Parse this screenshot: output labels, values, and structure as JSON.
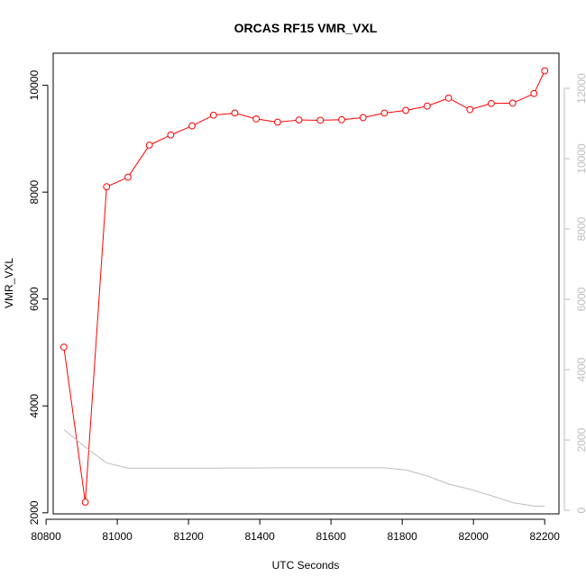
{
  "chart_data": {
    "type": "line",
    "title": "ORCAS RF15 VMR_VXL",
    "xlabel": "UTC Seconds",
    "ylabel": "VMR_VXL",
    "xlim": [
      80820,
      82240
    ],
    "ylim": [
      1980,
      10600
    ],
    "y2lim": [
      -100,
      13000
    ],
    "x_ticks": [
      80800,
      81000,
      81200,
      81400,
      81600,
      81800,
      82000,
      82200
    ],
    "y_ticks": [
      2000,
      4000,
      6000,
      8000,
      10000
    ],
    "y2_ticks": [
      0,
      2000,
      4000,
      6000,
      8000,
      10000,
      12000
    ],
    "grid": false,
    "series": [
      {
        "axis": "left",
        "color": "#ff0000",
        "markers": "open-circle",
        "x": [
          80850,
          80910,
          80970,
          81030,
          81090,
          81150,
          81210,
          81270,
          81330,
          81390,
          81450,
          81510,
          81570,
          81630,
          81690,
          81750,
          81810,
          81870,
          81930,
          81990,
          82050,
          82110,
          82170,
          82200
        ],
        "values": [
          5100,
          2200,
          8100,
          8280,
          8880,
          9070,
          9240,
          9440,
          9480,
          9370,
          9310,
          9350,
          9345,
          9355,
          9395,
          9480,
          9530,
          9610,
          9760,
          9545,
          9660,
          9665,
          9845,
          10270
        ]
      },
      {
        "axis": "right",
        "color": "#bdbdbd",
        "markers": "none",
        "x": [
          80850,
          80910,
          80970,
          81030,
          81090,
          81150,
          81210,
          81270,
          81330,
          81390,
          81450,
          81510,
          81570,
          81630,
          81690,
          81750,
          81810,
          81870,
          81930,
          81990,
          82050,
          82110,
          82170,
          82200
        ],
        "values": [
          2300,
          1800,
          1350,
          1200,
          1200,
          1200,
          1200,
          1200,
          1205,
          1205,
          1210,
          1210,
          1210,
          1210,
          1210,
          1210,
          1150,
          980,
          750,
          600,
          420,
          220,
          120,
          120
        ]
      }
    ]
  }
}
